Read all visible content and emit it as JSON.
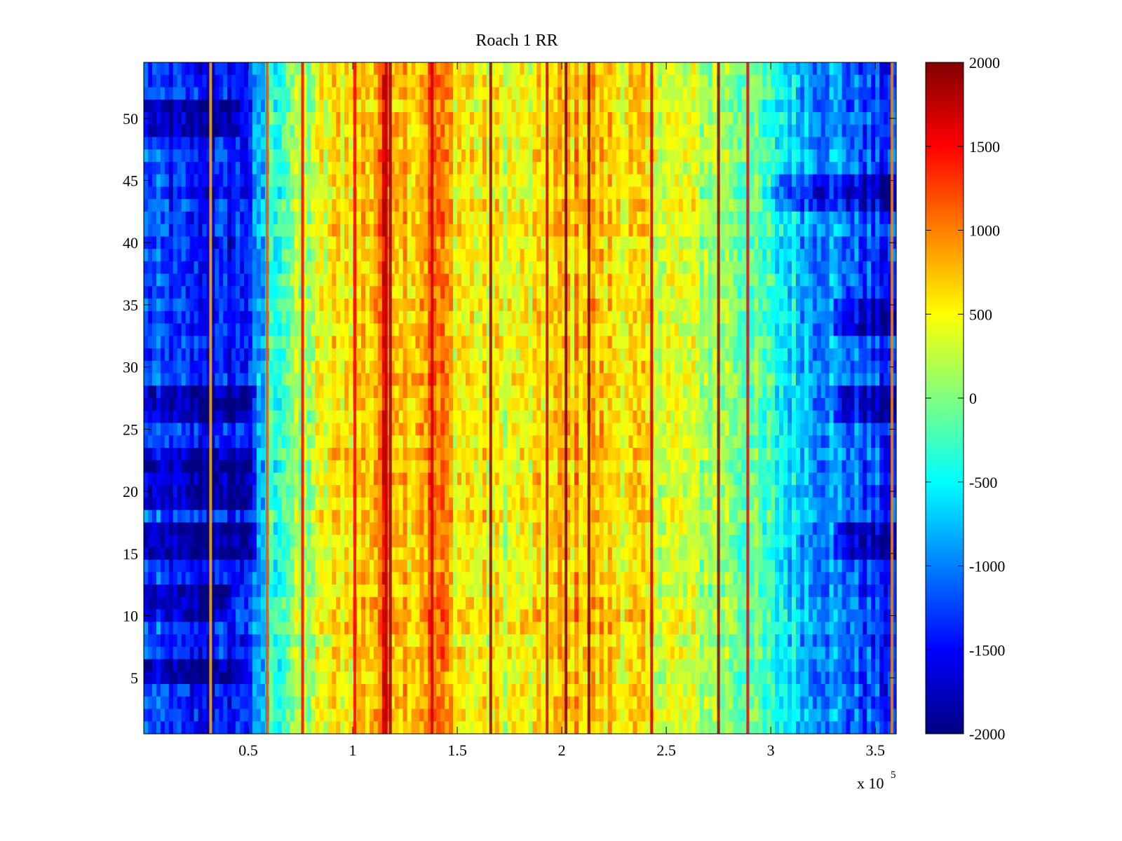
{
  "chart_data": {
    "type": "heatmap",
    "title": "Roach 1 RR",
    "xlabel": "",
    "ylabel": "",
    "x_multiplier_label": "x 10",
    "x_multiplier_exponent": "5",
    "xlim": [
      0,
      360000
    ],
    "ylim": [
      0.5,
      54.5
    ],
    "x_ticks": [
      50000,
      100000,
      150000,
      200000,
      250000,
      300000,
      350000
    ],
    "x_tick_labels": [
      "0.5",
      "1",
      "1.5",
      "2",
      "2.5",
      "3",
      "3.5"
    ],
    "y_ticks": [
      5,
      10,
      15,
      20,
      25,
      30,
      35,
      40,
      45,
      50
    ],
    "y_tick_labels": [
      "5",
      "10",
      "15",
      "20",
      "25",
      "30",
      "35",
      "40",
      "45",
      "50"
    ],
    "rows": 54,
    "colorbar": {
      "colormap": "jet",
      "clim": [
        -2000,
        2000
      ],
      "ticks": [
        2000,
        1500,
        1000,
        500,
        0,
        -500,
        -1000,
        -1500,
        -2000
      ],
      "tick_labels": [
        "2000",
        "1500",
        "1000",
        "500",
        "0",
        "-500",
        "-1000",
        "-1500",
        "-2000"
      ]
    },
    "column_profile": {
      "x": [
        0,
        10000,
        20000,
        30000,
        40000,
        50000,
        55000,
        60000,
        70000,
        80000,
        90000,
        100000,
        110000,
        115000,
        120000,
        130000,
        138000,
        145000,
        150000,
        160000,
        170000,
        180000,
        190000,
        200000,
        210000,
        220000,
        230000,
        240000,
        250000,
        260000,
        270000,
        280000,
        290000,
        300000,
        310000,
        320000,
        330000,
        340000,
        350000,
        360000
      ],
      "values": [
        -1200,
        -1300,
        -1400,
        -1500,
        -1450,
        -1300,
        -1000,
        -400,
        0,
        200,
        500,
        700,
        800,
        1300,
        900,
        800,
        1100,
        900,
        600,
        500,
        450,
        450,
        500,
        700,
        800,
        700,
        600,
        500,
        400,
        300,
        200,
        100,
        -100,
        -400,
        -600,
        -800,
        -900,
        -1100,
        -1300,
        -1400
      ]
    },
    "dark_row_bands": [
      {
        "rows": [
          49,
          51
        ],
        "x_range": [
          0,
          45000
        ]
      },
      {
        "rows": [
          26,
          28
        ],
        "x_range": [
          0,
          55000
        ]
      },
      {
        "rows": [
          19,
          23
        ],
        "x_range": [
          0,
          55000
        ]
      },
      {
        "rows": [
          15,
          17
        ],
        "x_range": [
          0,
          55000
        ]
      },
      {
        "rows": [
          10,
          12
        ],
        "x_range": [
          0,
          40000
        ]
      },
      {
        "rows": [
          5,
          6
        ],
        "x_range": [
          0,
          45000
        ]
      },
      {
        "rows": [
          43,
          45
        ],
        "x_range": [
          300000,
          360000
        ]
      },
      {
        "rows": [
          33,
          35
        ],
        "x_range": [
          330000,
          360000
        ]
      },
      {
        "rows": [
          15,
          17
        ],
        "x_range": [
          330000,
          360000
        ]
      },
      {
        "rows": [
          26,
          28
        ],
        "x_range": [
          330000,
          360000
        ]
      }
    ],
    "hot_columns": [
      {
        "x": 116000,
        "value": 1800
      },
      {
        "x": 118000,
        "value": 1900
      },
      {
        "x": 138000,
        "value": 1700
      },
      {
        "x": 166000,
        "value": 1900
      },
      {
        "x": 193000,
        "value": 1700
      },
      {
        "x": 202000,
        "value": 2000
      },
      {
        "x": 213000,
        "value": 2000
      },
      {
        "x": 243000,
        "value": 1700
      },
      {
        "x": 275000,
        "value": 1900
      },
      {
        "x": 289000,
        "value": 1500
      },
      {
        "x": 32000,
        "value": 800
      },
      {
        "x": 59000,
        "value": 1200
      },
      {
        "x": 76000,
        "value": 1500
      },
      {
        "x": 101000,
        "value": 1500
      },
      {
        "x": 358000,
        "value": 1000
      }
    ]
  }
}
